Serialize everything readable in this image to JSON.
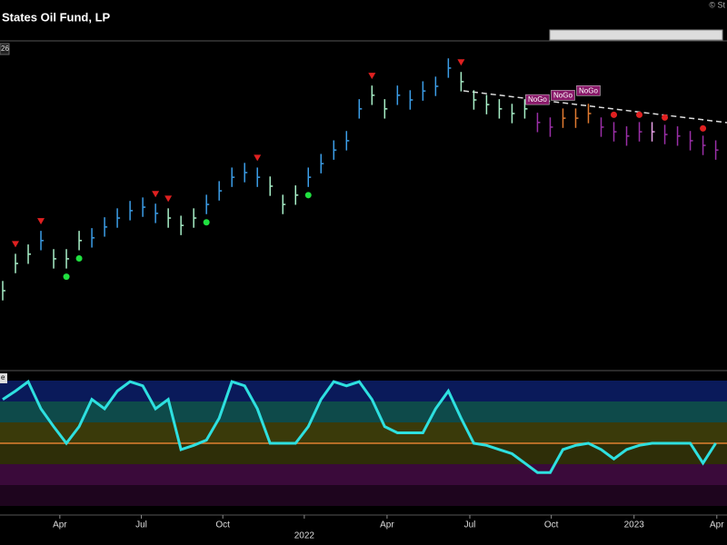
{
  "chart_data": [
    {
      "type": "ohlc",
      "title": "States Oil Fund, LP",
      "badge": "26",
      "copyright": "© St",
      "ylim": [
        15,
        98
      ],
      "xlim": [
        0,
        57.1
      ],
      "values": [
        33.7,
        40.7,
        43.1,
        46.6,
        41.9,
        41.9,
        46.6,
        47.3,
        50.1,
        52.4,
        54.3,
        55.2,
        53.6,
        52.4,
        50.5,
        52.4,
        55.9,
        59.4,
        62.9,
        64.1,
        62.9,
        60.6,
        55.9,
        58.3,
        62.9,
        66.4,
        69.9,
        72.3,
        80.5,
        84.0,
        80.5,
        84.0,
        82.8,
        85.1,
        86.3,
        91.0,
        87.5,
        82.8,
        81.6,
        80.5,
        79.3,
        80.5,
        77.0,
        75.8,
        78.1,
        78.1,
        79.3,
        75.8,
        74.6,
        73.5,
        74.6,
        74.6,
        73.9,
        73.5,
        72.3,
        71.1,
        69.9
      ],
      "high": [
        36.2,
        43.2,
        45.6,
        49.1,
        44.4,
        44.4,
        49.1,
        49.8,
        52.6,
        54.9,
        56.8,
        57.7,
        56.1,
        54.9,
        53.0,
        54.9,
        58.4,
        61.9,
        65.4,
        66.6,
        65.4,
        63.1,
        58.4,
        60.8,
        65.4,
        68.9,
        72.4,
        74.8,
        83.0,
        86.5,
        83.0,
        86.5,
        85.3,
        87.6,
        88.8,
        93.5,
        90.0,
        85.3,
        84.1,
        83.0,
        81.8,
        83.0,
        79.5,
        78.3,
        80.6,
        80.6,
        81.8,
        78.3,
        77.1,
        76.0,
        77.1,
        77.1,
        76.4,
        76.0,
        74.8,
        73.6,
        72.4
      ],
      "low": [
        31.2,
        38.2,
        40.6,
        44.1,
        39.4,
        39.4,
        44.1,
        44.8,
        47.6,
        49.9,
        51.8,
        52.7,
        51.1,
        49.9,
        48.0,
        49.9,
        53.4,
        56.9,
        60.4,
        61.6,
        60.4,
        58.1,
        53.4,
        55.8,
        60.4,
        63.9,
        67.4,
        69.8,
        78.0,
        81.5,
        78.0,
        81.5,
        80.3,
        82.6,
        83.8,
        88.5,
        85.0,
        80.3,
        79.1,
        78.0,
        76.8,
        78.0,
        74.5,
        73.3,
        75.6,
        75.6,
        76.8,
        73.3,
        72.1,
        71.0,
        72.1,
        72.1,
        71.4,
        71.0,
        69.8,
        68.6,
        67.4
      ],
      "colors": [
        "#a8f0c8",
        "#a8f0c8",
        "#a8f0c8",
        "#3c9ee8",
        "#a8f0c8",
        "#a8f0c8",
        "#a8f0c8",
        "#3c9ee8",
        "#3c9ee8",
        "#3c9ee8",
        "#3c9ee8",
        "#3c9ee8",
        "#3c9ee8",
        "#a8f0c8",
        "#a8f0c8",
        "#a8f0c8",
        "#3c9ee8",
        "#3c9ee8",
        "#3c9ee8",
        "#3c9ee8",
        "#3c9ee8",
        "#a8f0c8",
        "#a8f0c8",
        "#a8f0c8",
        "#3c9ee8",
        "#3c9ee8",
        "#3c9ee8",
        "#3c9ee8",
        "#3c9ee8",
        "#a8f0c8",
        "#a8f0c8",
        "#3c9ee8",
        "#3c9ee8",
        "#3c9ee8",
        "#3c9ee8",
        "#3c9ee8",
        "#a8f0c8",
        "#a8f0c8",
        "#a8f0c8",
        "#a8f0c8",
        "#a8f0c8",
        "#a8f0c8",
        "#9b2fa8",
        "#9b2fa8",
        "#e07a30",
        "#e07a30",
        "#e07a30",
        "#9b2fa8",
        "#9b2fa8",
        "#9b2fa8",
        "#9b2fa8",
        "#e8a0e8",
        "#9b2fa8",
        "#9b2fa8",
        "#9b2fa8",
        "#9b2fa8",
        "#9b2fa8"
      ],
      "sell_arrows": [
        1,
        3,
        12,
        13,
        20,
        29,
        36
      ],
      "buy_dots": [
        5,
        6,
        16,
        24
      ],
      "nogo_dots": [
        48,
        50,
        52,
        55
      ],
      "annotations": [
        {
          "text": "NoGo",
          "index": 42
        },
        {
          "text": "NoGo",
          "index": 44
        },
        {
          "text": "NoGo",
          "index": 46
        }
      ]
    },
    {
      "type": "line",
      "label": "e",
      "color": "#2ee0e0",
      "ylim": [
        -6,
        6
      ],
      "xlim": [
        0,
        57.1
      ],
      "values": [
        4.2,
        5.0,
        5.9,
        3.3,
        1.6,
        0,
        1.6,
        4.2,
        3.3,
        5.0,
        5.9,
        5.5,
        3.3,
        4.2,
        -0.6,
        -0.2,
        0.3,
        2.4,
        5.9,
        5.5,
        3.3,
        0,
        0,
        0,
        1.6,
        4.2,
        5.9,
        5.5,
        5.9,
        4.2,
        1.6,
        1.0,
        1.0,
        1.0,
        3.3,
        5.0,
        2.4,
        0,
        -0.2,
        -0.6,
        -1.0,
        -1.9,
        -2.8,
        -2.8,
        -0.6,
        -0.2,
        0,
        -0.6,
        -1.5,
        -0.6,
        -0.2,
        0,
        0,
        0,
        0,
        -1.9,
        0
      ],
      "xticks": [
        {
          "value": 4.7,
          "label": "Apr"
        },
        {
          "value": 11.1,
          "label": "Jul"
        },
        {
          "value": 17.5,
          "label": "Oct"
        },
        {
          "value": 23.9,
          "label": "2022"
        },
        {
          "value": 30.4,
          "label": "Apr"
        },
        {
          "value": 36.9,
          "label": "Jul"
        },
        {
          "value": 43.3,
          "label": "Oct"
        },
        {
          "value": 49.8,
          "label": "2023"
        },
        {
          "value": 56.3,
          "label": "Apr"
        }
      ]
    }
  ]
}
